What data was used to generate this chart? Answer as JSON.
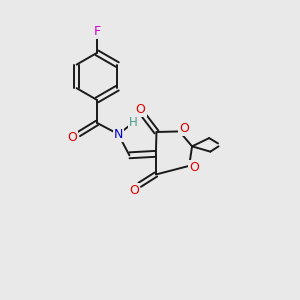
{
  "background_color": "#e9e9e9",
  "bond_color": "#1a1a1a",
  "atom_colors": {
    "F": "#cc00cc",
    "O": "#dd0000",
    "N": "#0000cc",
    "H": "#4a9a8a",
    "C": "#1a1a1a"
  },
  "figsize": [
    3.0,
    3.0
  ],
  "dpi": 100
}
